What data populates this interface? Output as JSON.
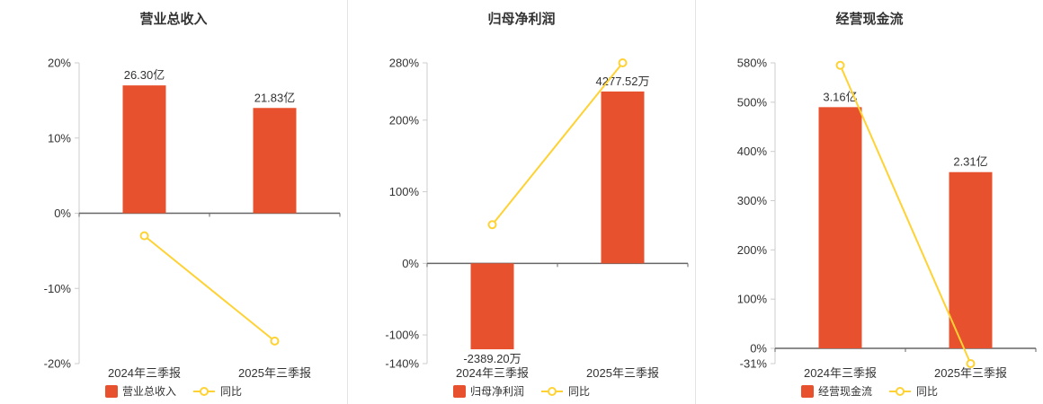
{
  "colors": {
    "bar": "#e8512d",
    "line": "#ffd234",
    "axis": "#cccccc",
    "zero_line": "#666666",
    "text": "#333333",
    "divider": "#e3e3e3",
    "background": "#ffffff"
  },
  "chart_data": [
    {
      "type": "bar+line",
      "title": "营业总收入",
      "categories": [
        "2024年三季报",
        "2025年三季报"
      ],
      "ylim": [
        -20,
        20
      ],
      "grid": false,
      "legend_position": "bottom",
      "y_ticks": [
        {
          "v": 20,
          "label": "20%"
        },
        {
          "v": 10,
          "label": "10%"
        },
        {
          "v": 0,
          "label": "0%"
        },
        {
          "v": -10,
          "label": "-10%"
        },
        {
          "v": -20,
          "label": "-20%"
        }
      ],
      "bar_series": {
        "name": "营业总收入",
        "labels": [
          "26.30亿",
          "21.83亿"
        ],
        "plotted_pct": [
          17,
          14
        ]
      },
      "line_series": {
        "name": "同比",
        "values_pct": [
          -3,
          -17
        ]
      }
    },
    {
      "type": "bar+line",
      "title": "归母净利润",
      "categories": [
        "2024年三季报",
        "2025年三季报"
      ],
      "ylim": [
        -140,
        280
      ],
      "grid": false,
      "legend_position": "bottom",
      "y_ticks": [
        {
          "v": 280,
          "label": "280%"
        },
        {
          "v": 200,
          "label": "200%"
        },
        {
          "v": 100,
          "label": "100%"
        },
        {
          "v": 0,
          "label": "0%"
        },
        {
          "v": -100,
          "label": "-100%"
        },
        {
          "v": -140,
          "label": "-140%"
        }
      ],
      "bar_series": {
        "name": "归母净利润",
        "labels": [
          "-2389.20万",
          "4277.52万"
        ],
        "plotted_pct": [
          -120,
          240
        ]
      },
      "line_series": {
        "name": "同比",
        "values_pct": [
          54,
          280
        ]
      }
    },
    {
      "type": "bar+line",
      "title": "经营现金流",
      "categories": [
        "2024年三季报",
        "2025年三季报"
      ],
      "ylim": [
        -31,
        580
      ],
      "grid": false,
      "legend_position": "bottom",
      "y_ticks": [
        {
          "v": 580,
          "label": "580%"
        },
        {
          "v": 500,
          "label": "500%"
        },
        {
          "v": 400,
          "label": "400%"
        },
        {
          "v": 300,
          "label": "300%"
        },
        {
          "v": 200,
          "label": "200%"
        },
        {
          "v": 100,
          "label": "100%"
        },
        {
          "v": 0,
          "label": "0%"
        },
        {
          "v": -31,
          "label": "-31%"
        }
      ],
      "bar_series": {
        "name": "经营现金流",
        "labels": [
          "3.16亿",
          "2.31亿"
        ],
        "plotted_pct": [
          490,
          358
        ]
      },
      "line_series": {
        "name": "同比",
        "values_pct": [
          575,
          -31
        ]
      }
    }
  ]
}
